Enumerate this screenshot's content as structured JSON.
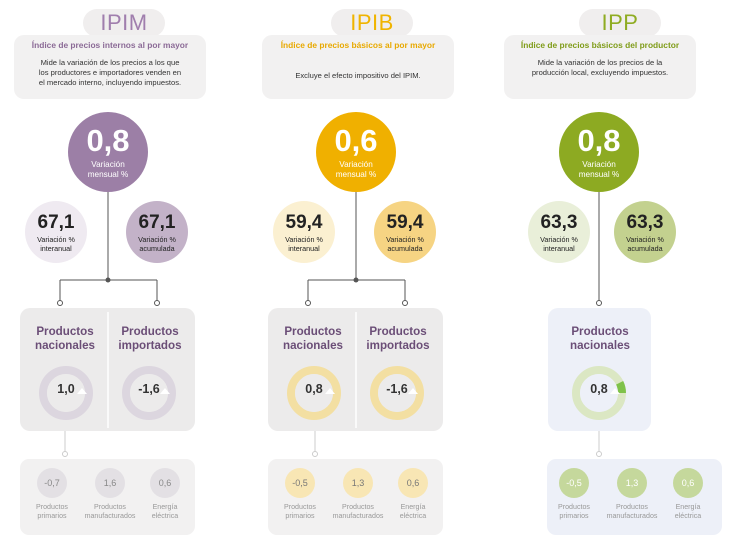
{
  "columns": [
    {
      "abbr": "IPIM",
      "title": "Índice de precios internos al por mayor",
      "description": "Mide la variación de los precios a los que\nlos productores e importadores venden en\nel mercado interno, incluyendo impuestos.",
      "monthly": {
        "value": "0,8",
        "label": "Variación\nmensual %"
      },
      "interanual": {
        "value": "67,1",
        "label": "Variación %\ninteranual"
      },
      "acumulada": {
        "value": "67,1",
        "label": "Variación %\nacumulada"
      },
      "nacionales": {
        "label": "Productos\nnacionales",
        "value": "1,0"
      },
      "importados": {
        "label": "Productos\nimportados",
        "value": "-1,6"
      },
      "primarios": {
        "value": "-0,7",
        "label": "Productos\nprimarios"
      },
      "manufacturados": {
        "value": "1,6",
        "label": "Productos\nmanufacturados"
      },
      "energia": {
        "value": "0,6",
        "label": "Energía\neléctrica"
      },
      "colors": {
        "accent": "#9c7fa6",
        "small_light": "#efeaf1",
        "small_dark": "#c3b2c8",
        "abbr": "#a07ead"
      }
    },
    {
      "abbr": "IPIB",
      "title": "Índice de precios básicos al por mayor",
      "description": "Excluye el efecto impositivo del IPIM.",
      "monthly": {
        "value": "0,6",
        "label": "Variación\nmensual %"
      },
      "interanual": {
        "value": "59,4",
        "label": "Variación %\ninteranual"
      },
      "acumulada": {
        "value": "59,4",
        "label": "Variación %\nacumulada"
      },
      "nacionales": {
        "label": "Productos\nnacionales",
        "value": "0,8"
      },
      "importados": {
        "label": "Productos\nimportados",
        "value": "-1,6"
      },
      "primarios": {
        "value": "-0,5",
        "label": "Productos\nprimarios"
      },
      "manufacturados": {
        "value": "1,3",
        "label": "Productos\nmanufacturados"
      },
      "energia": {
        "value": "0,6",
        "label": "Energía\neléctrica"
      },
      "colors": {
        "accent": "#f0b000",
        "small_light": "#fbf0d1",
        "small_dark": "#f6d483",
        "abbr": "#f0b400"
      }
    },
    {
      "abbr": "IPP",
      "title": "Índice de precios básicos del productor",
      "description": "Mide la variación de los precios de la\nproducción local, excluyendo impuestos.",
      "monthly": {
        "value": "0,8",
        "label": "Variación\nmensual %"
      },
      "interanual": {
        "value": "63,3",
        "label": "Variación %\ninteranual"
      },
      "acumulada": {
        "value": "63,3",
        "label": "Variación %\nacumulada"
      },
      "nacionales": {
        "label": "Productos\nnacionales",
        "value": "0,8"
      },
      "primarios": {
        "value": "-0,5",
        "label": "Productos\nprimarios"
      },
      "manufacturados": {
        "value": "1,3",
        "label": "Productos\nmanufacturados"
      },
      "energia": {
        "value": "0,6",
        "label": "Energía\neléctrica"
      },
      "colors": {
        "accent": "#8daa22",
        "small_light": "#e9efd9",
        "small_dark": "#c3d18f",
        "abbr": "#8fac22"
      }
    }
  ]
}
